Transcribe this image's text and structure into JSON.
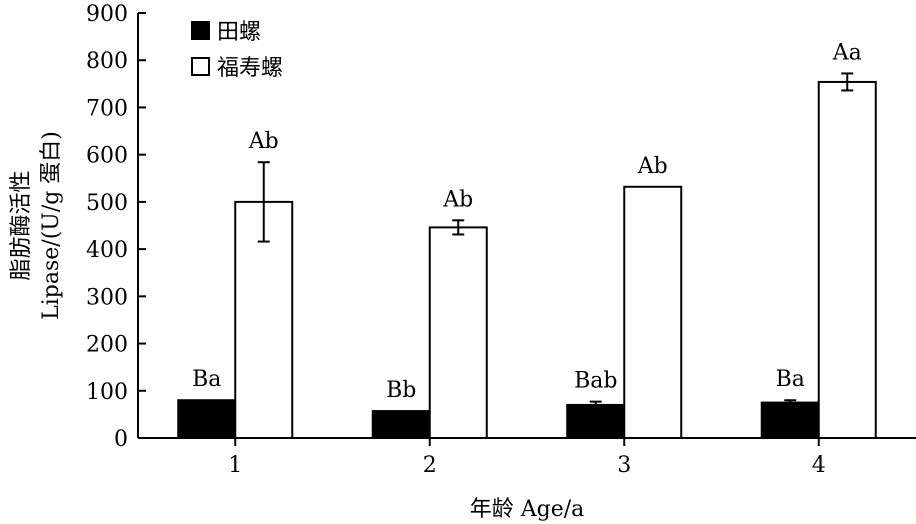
{
  "chart_data": {
    "type": "bar",
    "xlabel": "年龄 Age/a",
    "ylabel_line1": "脂肪酶活性",
    "ylabel_line2": "Lipase/(U/g 蛋白)",
    "ylim": [
      0,
      900
    ],
    "yticks": [
      0,
      100,
      200,
      300,
      400,
      500,
      600,
      700,
      800,
      900
    ],
    "categories": [
      "1",
      "2",
      "3",
      "4"
    ],
    "legend_position": "top-left",
    "series": [
      {
        "name": "田螺",
        "color": "#000000",
        "values": [
          80,
          57,
          70,
          75
        ],
        "errors": [
          0,
          0,
          7,
          5
        ],
        "labels": [
          "Ba",
          "Bb",
          "Bab",
          "Ba"
        ]
      },
      {
        "name": "福寿螺",
        "color": "#ffffff",
        "values": [
          500,
          446,
          532,
          754
        ],
        "errors": [
          84,
          15,
          0,
          18
        ],
        "labels": [
          "Ab",
          "Ab",
          "Ab",
          "Aa"
        ]
      }
    ]
  }
}
